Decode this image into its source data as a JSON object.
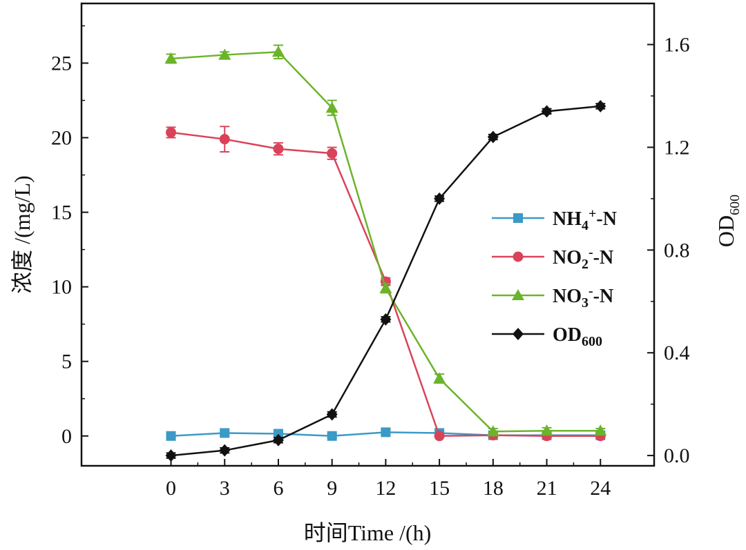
{
  "chart_data": {
    "type": "line",
    "x": [
      0,
      3,
      6,
      9,
      12,
      15,
      18,
      21,
      24
    ],
    "xlabel": "时间Time /(h)",
    "ylabel": "浓度 /(mg/L)",
    "y2label": {
      "main": "OD",
      "sub": "600"
    },
    "xlim": [
      -5,
      27
    ],
    "ylim": [
      -2,
      29
    ],
    "y2lim": [
      -0.04,
      1.76
    ],
    "xticks": [
      "0",
      "3",
      "6",
      "9",
      "12",
      "15",
      "18",
      "21",
      "24"
    ],
    "yticks": [
      "0",
      "5",
      "10",
      "15",
      "20",
      "25"
    ],
    "y2ticks": [
      "0.0",
      "0.4",
      "0.8",
      "1.2",
      "1.6"
    ],
    "grid": false,
    "legend_position": "right-middle",
    "series": [
      {
        "key": "nh4",
        "axis": "left",
        "marker": "square",
        "color": "#3b9ac6",
        "legend": {
          "main": "NH",
          "sub": "4",
          "sup": "+",
          "tail": "-N"
        },
        "values": [
          0.0,
          0.2,
          0.15,
          0.0,
          0.25,
          0.2,
          0.05,
          0.05,
          0.05
        ],
        "errors": [
          0.1,
          0.15,
          0.1,
          0.1,
          0.15,
          0.1,
          0.05,
          0.05,
          0.05
        ]
      },
      {
        "key": "no2",
        "axis": "left",
        "marker": "circle",
        "color": "#d9435a",
        "legend": {
          "main": "NO",
          "sub": "2",
          "sup": "-",
          "tail": "-N"
        },
        "values": [
          20.35,
          19.9,
          19.25,
          18.95,
          10.35,
          0.0,
          0.05,
          0.0,
          0.0
        ],
        "errors": [
          0.35,
          0.85,
          0.4,
          0.4,
          0.25,
          0.05,
          0.05,
          0.05,
          0.05
        ]
      },
      {
        "key": "no3",
        "axis": "left",
        "marker": "triangle",
        "color": "#6bb42a",
        "legend": {
          "main": "NO",
          "sub": "3",
          "sup": "-",
          "tail": "-N"
        },
        "values": [
          25.3,
          25.55,
          25.75,
          22.0,
          9.9,
          3.85,
          0.3,
          0.35,
          0.35
        ],
        "errors": [
          0.3,
          0.2,
          0.45,
          0.5,
          0.3,
          0.3,
          0.2,
          0.2,
          0.15
        ]
      },
      {
        "key": "od",
        "axis": "right",
        "marker": "diamond",
        "color": "#111111",
        "legend": {
          "main": "OD",
          "sub": "600",
          "sup": "",
          "tail": ""
        },
        "values": [
          0.0,
          0.02,
          0.06,
          0.16,
          0.53,
          1.0,
          1.24,
          1.34,
          1.36
        ],
        "errors": [
          0.01,
          0.01,
          0.01,
          0.01,
          0.01,
          0.01,
          0.01,
          0.01,
          0.01
        ]
      }
    ]
  }
}
